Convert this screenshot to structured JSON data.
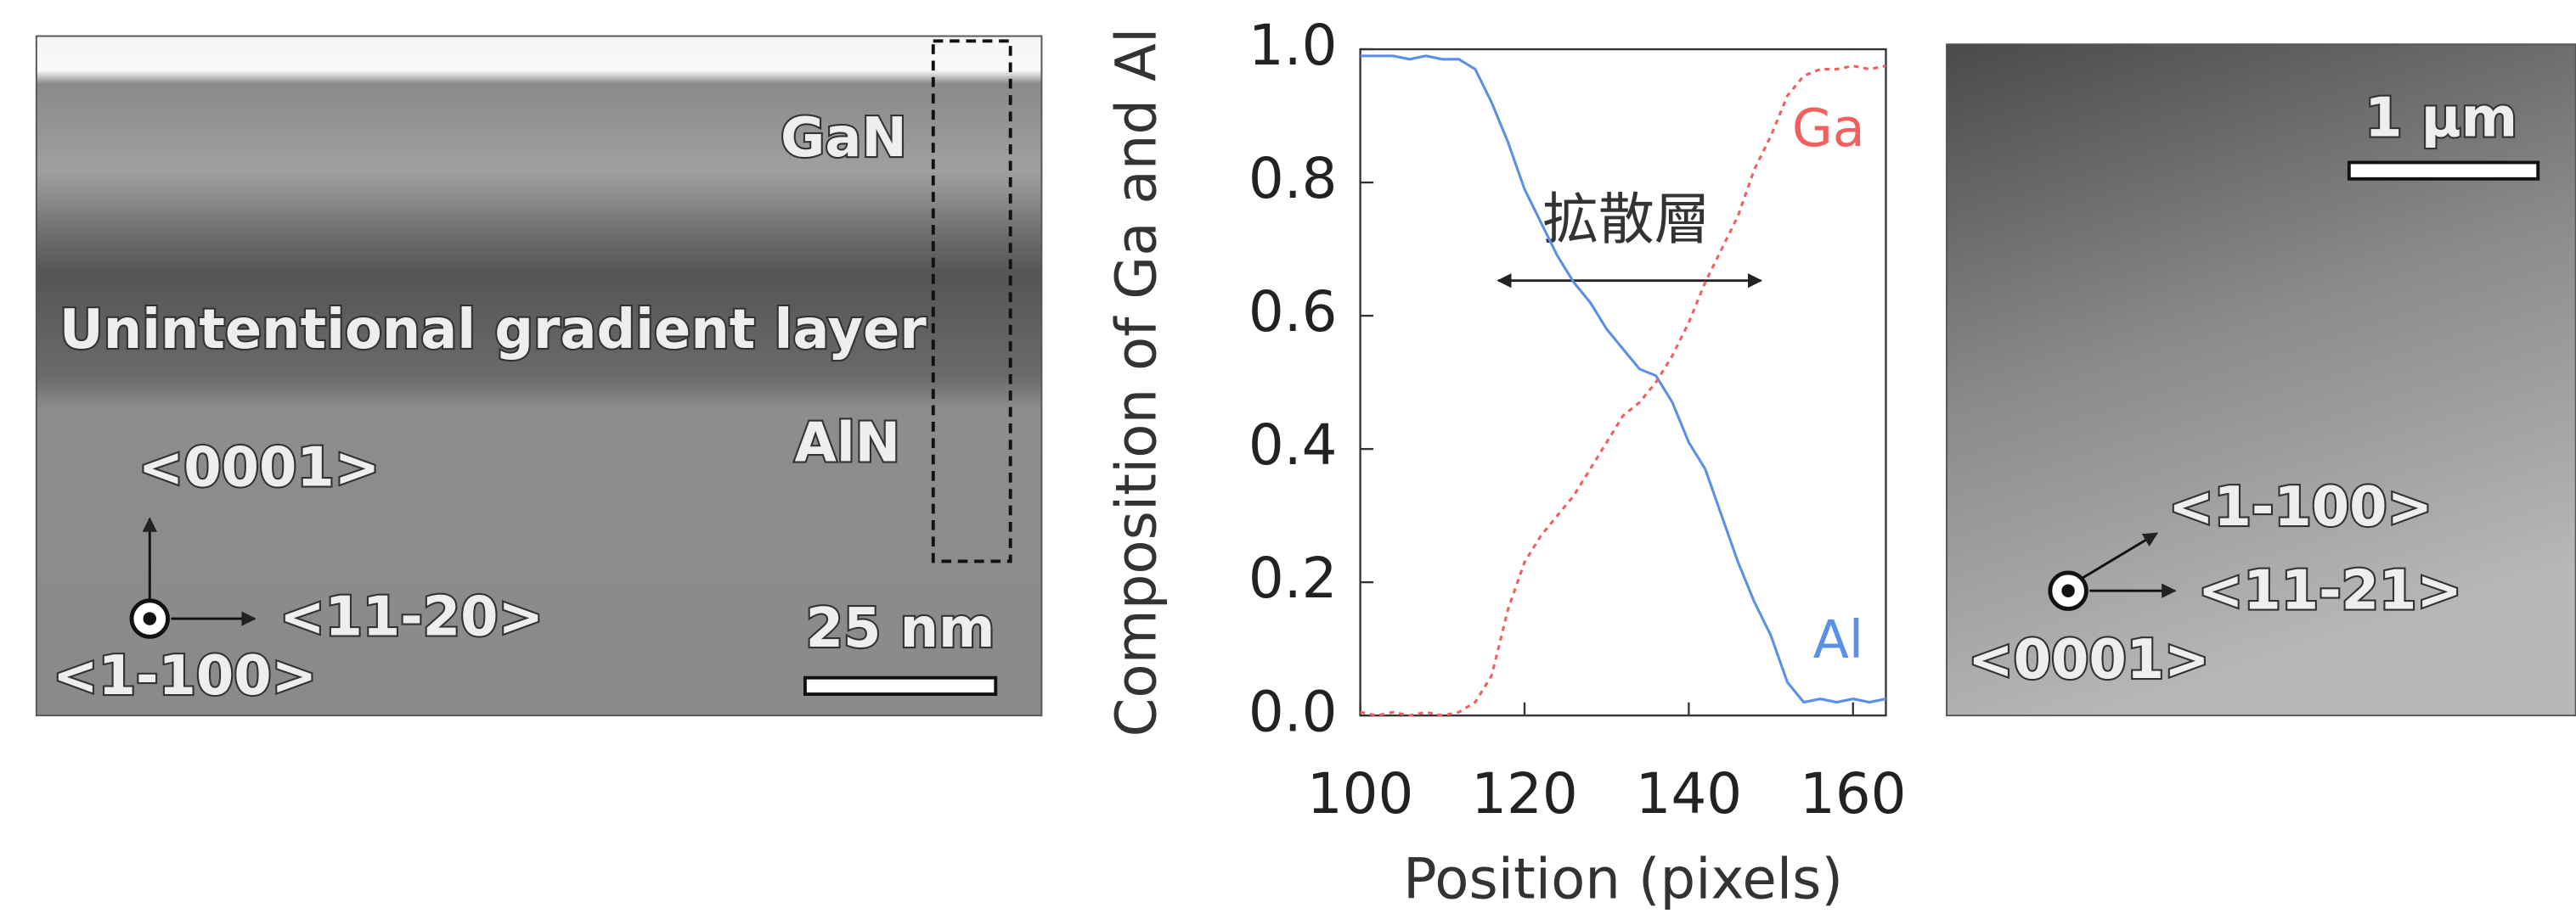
{
  "left_image": {
    "layer_top": "GaN",
    "layer_middle": "Unintentional gradient layer",
    "layer_bottom": "AlN",
    "axis_up": "<0001>",
    "axis_right": "<11-20>",
    "axis_out": "<1-100>",
    "scale_bar": "25 nm"
  },
  "chart_data": {
    "type": "line",
    "x_label": "Position (pixels)",
    "y_label": "Composition of Ga and Al",
    "annotation": "拡散層",
    "x": [
      100,
      102,
      104,
      106,
      108,
      110,
      112,
      114,
      116,
      118,
      120,
      122,
      124,
      126,
      128,
      130,
      132,
      134,
      136,
      138,
      140,
      142,
      144,
      146,
      148,
      150,
      152,
      154,
      156,
      158,
      160,
      162,
      164
    ],
    "series": [
      {
        "name": "Al",
        "color": "#5b8fe8",
        "style": "solid",
        "values": [
          0.99,
          0.99,
          0.99,
          0.985,
          0.99,
          0.985,
          0.985,
          0.97,
          0.92,
          0.86,
          0.79,
          0.74,
          0.69,
          0.65,
          0.62,
          0.58,
          0.55,
          0.52,
          0.51,
          0.47,
          0.41,
          0.37,
          0.3,
          0.23,
          0.17,
          0.12,
          0.05,
          0.02,
          0.025,
          0.02,
          0.025,
          0.02,
          0.025
        ]
      },
      {
        "name": "Ga",
        "color": "#f06060",
        "style": "dashed",
        "values": [
          0.005,
          0,
          0.005,
          0,
          0.005,
          0,
          0.005,
          0.02,
          0.06,
          0.16,
          0.23,
          0.27,
          0.3,
          0.33,
          0.37,
          0.41,
          0.45,
          0.47,
          0.5,
          0.54,
          0.59,
          0.65,
          0.7,
          0.75,
          0.82,
          0.87,
          0.93,
          0.96,
          0.97,
          0.97,
          0.975,
          0.97,
          0.975
        ]
      }
    ],
    "xlim": [
      100,
      164
    ],
    "xticks": [
      100,
      120,
      140,
      160
    ],
    "ylim": [
      0,
      1
    ],
    "yticks": [
      {
        "value": 0,
        "label": "0.0"
      },
      0.2,
      0.4,
      0.6,
      0.8,
      {
        "value": 1,
        "label": "1.0"
      }
    ]
  },
  "right_image": {
    "scale_bar": "1 μm",
    "axis_up": "<1-100>",
    "axis_right": "<11-21>",
    "axis_out": "<0001>"
  }
}
